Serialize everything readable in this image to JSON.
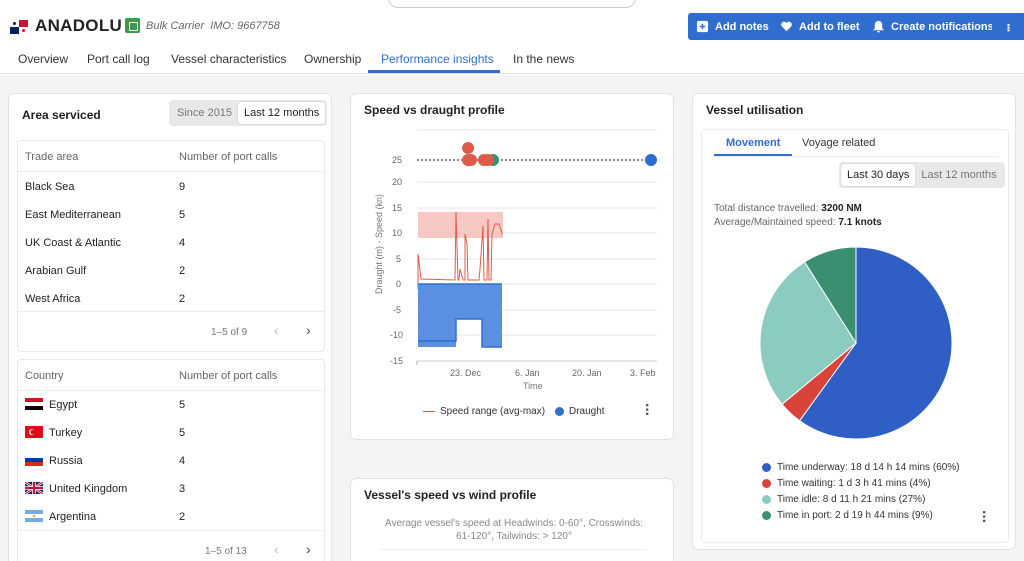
{
  "vessel": {
    "name": "ANADOLU S",
    "type": "Bulk Carrier",
    "imo": "IMO: 9667758"
  },
  "header_buttons": {
    "add_notes": "Add notes",
    "add_fleet": "Add to fleet",
    "notifications": "Create notifications"
  },
  "tabs": [
    "Overview",
    "Port call log",
    "Vessel characteristics",
    "Ownership",
    "Performance insights",
    "In the news"
  ],
  "area": {
    "title": "Area serviced",
    "seg": [
      "Since 2015",
      "Last 12 months"
    ],
    "trade_header": [
      "Trade area",
      "Number of port calls"
    ],
    "trade_rows": [
      {
        "name": "Black Sea",
        "count": "9"
      },
      {
        "name": "East Mediterranean",
        "count": "5"
      },
      {
        "name": "UK Coast & Atlantic",
        "count": "4"
      },
      {
        "name": "Arabian Gulf",
        "count": "2"
      },
      {
        "name": "West Africa",
        "count": "2"
      }
    ],
    "trade_pager": "1–5 of 9",
    "country_header": [
      "Country",
      "Number of port calls"
    ],
    "country_rows": [
      {
        "name": "Egypt",
        "count": "5"
      },
      {
        "name": "Turkey",
        "count": "5"
      },
      {
        "name": "Russia",
        "count": "4"
      },
      {
        "name": "United Kingdom",
        "count": "3"
      },
      {
        "name": "Argentina",
        "count": "2"
      }
    ],
    "country_pager": "1–5 of 13"
  },
  "speed_chart": {
    "title": "Speed vs draught profile",
    "ylabel": "Draught (m) - Speed (kn)",
    "xlabel": "Time",
    "yticks": [
      "25",
      "20",
      "15",
      "10",
      "5",
      "0",
      "-5",
      "-10",
      "-15"
    ],
    "xticks": [
      "23. Dec",
      "6. Jan",
      "20. Jan",
      "3. Feb"
    ],
    "legend_speed": "Speed range (avg-max)",
    "legend_draught": "Draught",
    "colors": {
      "speed": "#e05a4a",
      "speed_band": "#f4b6b0",
      "draught": "#2f6ecf",
      "draught_fill": "#5b8fe0"
    }
  },
  "wind": {
    "title": "Vessel's speed vs wind profile",
    "desc": "Average vessel's speed at Headwinds: 0-60°, Crosswinds: 61-120°, Tailwinds: > 120°"
  },
  "util": {
    "title": "Vessel utilisation",
    "tabs": [
      "Movement",
      "Voyage related"
    ],
    "seg": [
      "Last 30 days",
      "Last 12 months"
    ],
    "distance_label": "Total distance travelled:",
    "distance_value": "3200 NM",
    "speed_label": "Average/Maintained speed:",
    "speed_value": "7.1 knots",
    "legend": [
      {
        "label": "Time underway: 18 d 14 h 14 mins (60%)",
        "color": "#2f5fc4",
        "pct": 60
      },
      {
        "label": "Time waiting: 1 d 3 h 41 mins (4%)",
        "color": "#d9443a",
        "pct": 4
      },
      {
        "label": "Time idle: 8 d 11 h 21 mins (27%)",
        "color": "#8ccbbf",
        "pct": 27
      },
      {
        "label": "Time in port: 2 d 19 h 44 mins (9%)",
        "color": "#3a8f70",
        "pct": 9
      }
    ]
  }
}
